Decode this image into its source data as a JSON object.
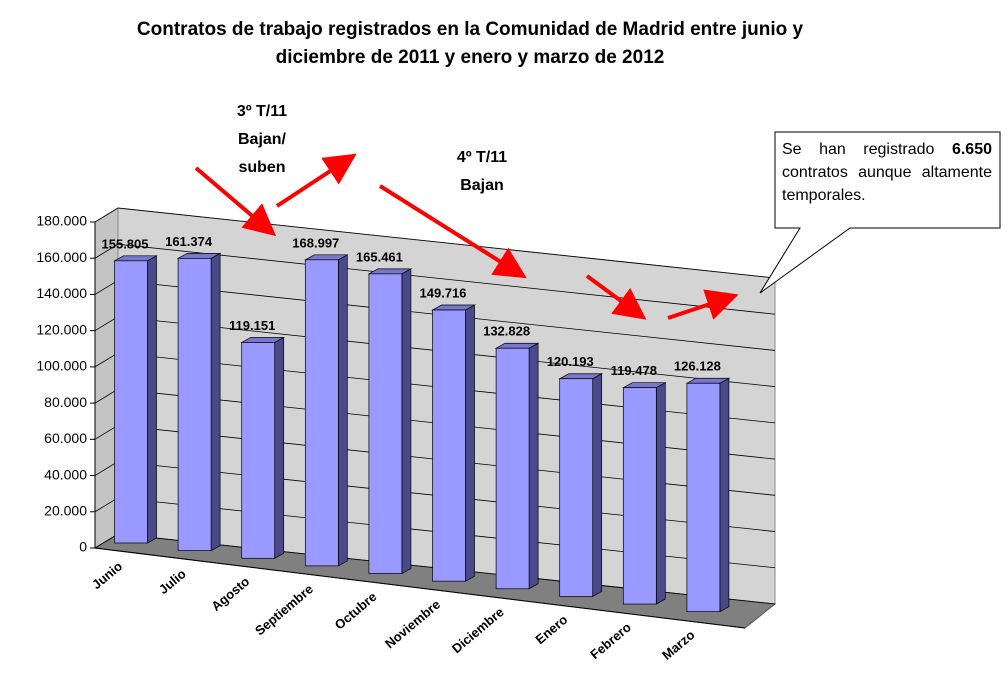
{
  "chart_data": {
    "type": "bar3d",
    "title": [
      "Contratos de trabajo registrados en la Comunidad de Madrid entre junio y",
      "diciembre de 2011 y enero y marzo de 2012"
    ],
    "categories": [
      "Junio",
      "Julio",
      "Agosto",
      "Septiembre",
      "Octubre",
      "Noviembre",
      "Diciembre",
      "Enero",
      "Febrero",
      "Marzo"
    ],
    "values": [
      155805,
      161374,
      119151,
      168997,
      165461,
      149716,
      132828,
      120193,
      119478,
      126128
    ],
    "value_labels": [
      "155.805",
      "161.374",
      "119.151",
      "168.997",
      "165.461",
      "149.716",
      "132.828",
      "120.193",
      "119.478",
      "126.128"
    ],
    "color": "#9999ff",
    "ylim": [
      0,
      180000
    ],
    "yticks": [
      0,
      {
        "value": 20000,
        "label": "20.000"
      },
      {
        "value": 40000,
        "label": "40.000"
      },
      {
        "value": 60000,
        "label": "60.000"
      },
      {
        "value": 80000,
        "label": "80.000"
      },
      {
        "value": 100000,
        "label": "100.000"
      },
      {
        "value": 120000,
        "label": "120.000"
      },
      {
        "value": 140000,
        "label": "140.000"
      },
      {
        "value": 160000,
        "label": "160.000"
      },
      {
        "value": 180000,
        "label": "180.000"
      }
    ],
    "grid": true,
    "annotations": [
      [
        "3º T/11",
        "Bajan/",
        "suben"
      ],
      [
        "4º T/11",
        "Bajan"
      ]
    ],
    "callout": {
      "before": "Se han registrado",
      "bold": "6.650",
      "after": "contratos aunque altamente temporales."
    }
  }
}
